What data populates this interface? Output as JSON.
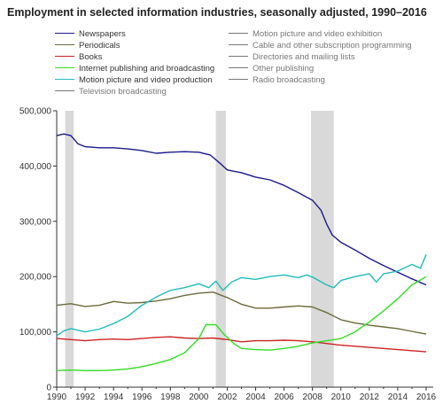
{
  "chart_data": {
    "type": "line",
    "title": "Employment in selected information industries, seasonally adjusted, 1990–2016",
    "xlim": [
      1990,
      2016.5
    ],
    "ylim": [
      0,
      500000
    ],
    "x_ticks": [
      "1990",
      "1992",
      "1994",
      "1996",
      "1998",
      "2000",
      "2002",
      "2004",
      "2006",
      "2008",
      "2010",
      "2012",
      "2014",
      "2016"
    ],
    "y_ticks": [
      "0",
      "100,000",
      "200,000",
      "300,000",
      "400,000",
      "500,000"
    ],
    "recessions": [
      [
        1990.6,
        1991.2
      ],
      [
        2001.2,
        2001.9
      ],
      [
        2007.9,
        2009.5
      ]
    ],
    "legend_placement": "top",
    "series": [
      {
        "name": "Newspapers",
        "color": "#1a1a8c",
        "muted": false,
        "points": [
          [
            1990,
            455000
          ],
          [
            1990.5,
            458000
          ],
          [
            1991,
            455000
          ],
          [
            1991.5,
            440000
          ],
          [
            1992,
            435000
          ],
          [
            1993,
            433000
          ],
          [
            1994,
            433000
          ],
          [
            1995,
            431000
          ],
          [
            1996,
            428000
          ],
          [
            1997,
            423000
          ],
          [
            1998,
            425000
          ],
          [
            1999,
            426000
          ],
          [
            2000,
            425000
          ],
          [
            2000.8,
            420000
          ],
          [
            2001.5,
            405000
          ],
          [
            2002,
            393000
          ],
          [
            2003,
            388000
          ],
          [
            2004,
            380000
          ],
          [
            2005,
            375000
          ],
          [
            2006,
            365000
          ],
          [
            2007,
            352000
          ],
          [
            2008,
            338000
          ],
          [
            2008.6,
            320000
          ],
          [
            2009,
            295000
          ],
          [
            2009.4,
            275000
          ],
          [
            2010,
            262000
          ],
          [
            2011,
            248000
          ],
          [
            2012,
            233000
          ],
          [
            2013,
            220000
          ],
          [
            2014,
            208000
          ],
          [
            2015,
            196000
          ],
          [
            2016,
            185000
          ]
        ]
      },
      {
        "name": "Periodicals",
        "color": "#6b6b3a",
        "muted": false,
        "points": [
          [
            1990,
            148000
          ],
          [
            1991,
            151000
          ],
          [
            1992,
            146000
          ],
          [
            1993,
            148000
          ],
          [
            1994,
            155000
          ],
          [
            1995,
            152000
          ],
          [
            1996,
            153000
          ],
          [
            1997,
            156000
          ],
          [
            1998,
            160000
          ],
          [
            1999,
            166000
          ],
          [
            2000,
            170000
          ],
          [
            2001,
            172000
          ],
          [
            2002,
            162000
          ],
          [
            2003,
            150000
          ],
          [
            2004,
            143000
          ],
          [
            2005,
            143000
          ],
          [
            2006,
            145000
          ],
          [
            2007,
            147000
          ],
          [
            2008,
            145000
          ],
          [
            2009,
            135000
          ],
          [
            2010,
            122000
          ],
          [
            2011,
            116000
          ],
          [
            2012,
            112000
          ],
          [
            2013,
            109000
          ],
          [
            2014,
            106000
          ],
          [
            2015,
            101000
          ],
          [
            2016,
            96000
          ]
        ]
      },
      {
        "name": "Books",
        "color": "#cc2222",
        "muted": false,
        "points": [
          [
            1990,
            88000
          ],
          [
            1991,
            86000
          ],
          [
            1992,
            84000
          ],
          [
            1993,
            86000
          ],
          [
            1994,
            87000
          ],
          [
            1995,
            86000
          ],
          [
            1996,
            88000
          ],
          [
            1997,
            90000
          ],
          [
            1998,
            91000
          ],
          [
            1999,
            89000
          ],
          [
            2000,
            88000
          ],
          [
            2001,
            89000
          ],
          [
            2002,
            86000
          ],
          [
            2003,
            82000
          ],
          [
            2004,
            84000
          ],
          [
            2005,
            84000
          ],
          [
            2006,
            85000
          ],
          [
            2007,
            84000
          ],
          [
            2008,
            82000
          ],
          [
            2009,
            79000
          ],
          [
            2010,
            76000
          ],
          [
            2011,
            74000
          ],
          [
            2012,
            72000
          ],
          [
            2013,
            70000
          ],
          [
            2014,
            68000
          ],
          [
            2015,
            66000
          ],
          [
            2016,
            64000
          ]
        ]
      },
      {
        "name": "Internet publishing and broadcasting",
        "color": "#33dd22",
        "muted": false,
        "points": [
          [
            1990,
            30000
          ],
          [
            1991,
            31000
          ],
          [
            1992,
            30000
          ],
          [
            1993,
            30000
          ],
          [
            1994,
            31000
          ],
          [
            1995,
            33000
          ],
          [
            1996,
            37000
          ],
          [
            1997,
            43000
          ],
          [
            1998,
            50000
          ],
          [
            1999,
            62000
          ],
          [
            2000,
            88000
          ],
          [
            2000.5,
            113000
          ],
          [
            2001.2,
            113000
          ],
          [
            2001.8,
            95000
          ],
          [
            2002.5,
            78000
          ],
          [
            2003,
            70000
          ],
          [
            2004,
            68000
          ],
          [
            2005,
            67000
          ],
          [
            2006,
            70000
          ],
          [
            2007,
            74000
          ],
          [
            2008,
            80000
          ],
          [
            2009,
            84000
          ],
          [
            2010,
            88000
          ],
          [
            2011,
            100000
          ],
          [
            2012,
            118000
          ],
          [
            2013,
            138000
          ],
          [
            2014,
            160000
          ],
          [
            2015,
            185000
          ],
          [
            2016,
            200000
          ]
        ]
      },
      {
        "name": "Motion picture and video production",
        "color": "#22bbbb",
        "muted": false,
        "points": [
          [
            1990,
            93000
          ],
          [
            1990.5,
            102000
          ],
          [
            1991,
            106000
          ],
          [
            1992,
            100000
          ],
          [
            1993,
            105000
          ],
          [
            1994,
            115000
          ],
          [
            1995,
            128000
          ],
          [
            1996,
            148000
          ],
          [
            1997,
            163000
          ],
          [
            1998,
            175000
          ],
          [
            1999,
            180000
          ],
          [
            2000,
            187000
          ],
          [
            2000.7,
            180000
          ],
          [
            2001.2,
            192000
          ],
          [
            2001.7,
            175000
          ],
          [
            2002.3,
            190000
          ],
          [
            2003,
            198000
          ],
          [
            2004,
            195000
          ],
          [
            2005,
            200000
          ],
          [
            2006,
            203000
          ],
          [
            2007,
            198000
          ],
          [
            2007.6,
            203000
          ],
          [
            2008,
            199000
          ],
          [
            2009,
            185000
          ],
          [
            2009.5,
            180000
          ],
          [
            2010,
            193000
          ],
          [
            2011,
            200000
          ],
          [
            2012,
            205000
          ],
          [
            2012.5,
            190000
          ],
          [
            2013,
            205000
          ],
          [
            2014,
            210000
          ],
          [
            2015,
            222000
          ],
          [
            2015.6,
            215000
          ],
          [
            2016,
            240000
          ]
        ]
      },
      {
        "name": "Television broadcasting",
        "color": "#777777",
        "muted": true,
        "points": []
      },
      {
        "name": "Motion picture and video exhibition",
        "color": "#777777",
        "muted": true,
        "points": []
      },
      {
        "name": "Cable and other subscription programming",
        "color": "#777777",
        "muted": true,
        "points": []
      },
      {
        "name": "Directories and mailing lists",
        "color": "#777777",
        "muted": true,
        "points": []
      },
      {
        "name": "Other publishing",
        "color": "#777777",
        "muted": true,
        "points": []
      },
      {
        "name": "Radio broadcasting",
        "color": "#777777",
        "muted": true,
        "points": []
      }
    ]
  }
}
